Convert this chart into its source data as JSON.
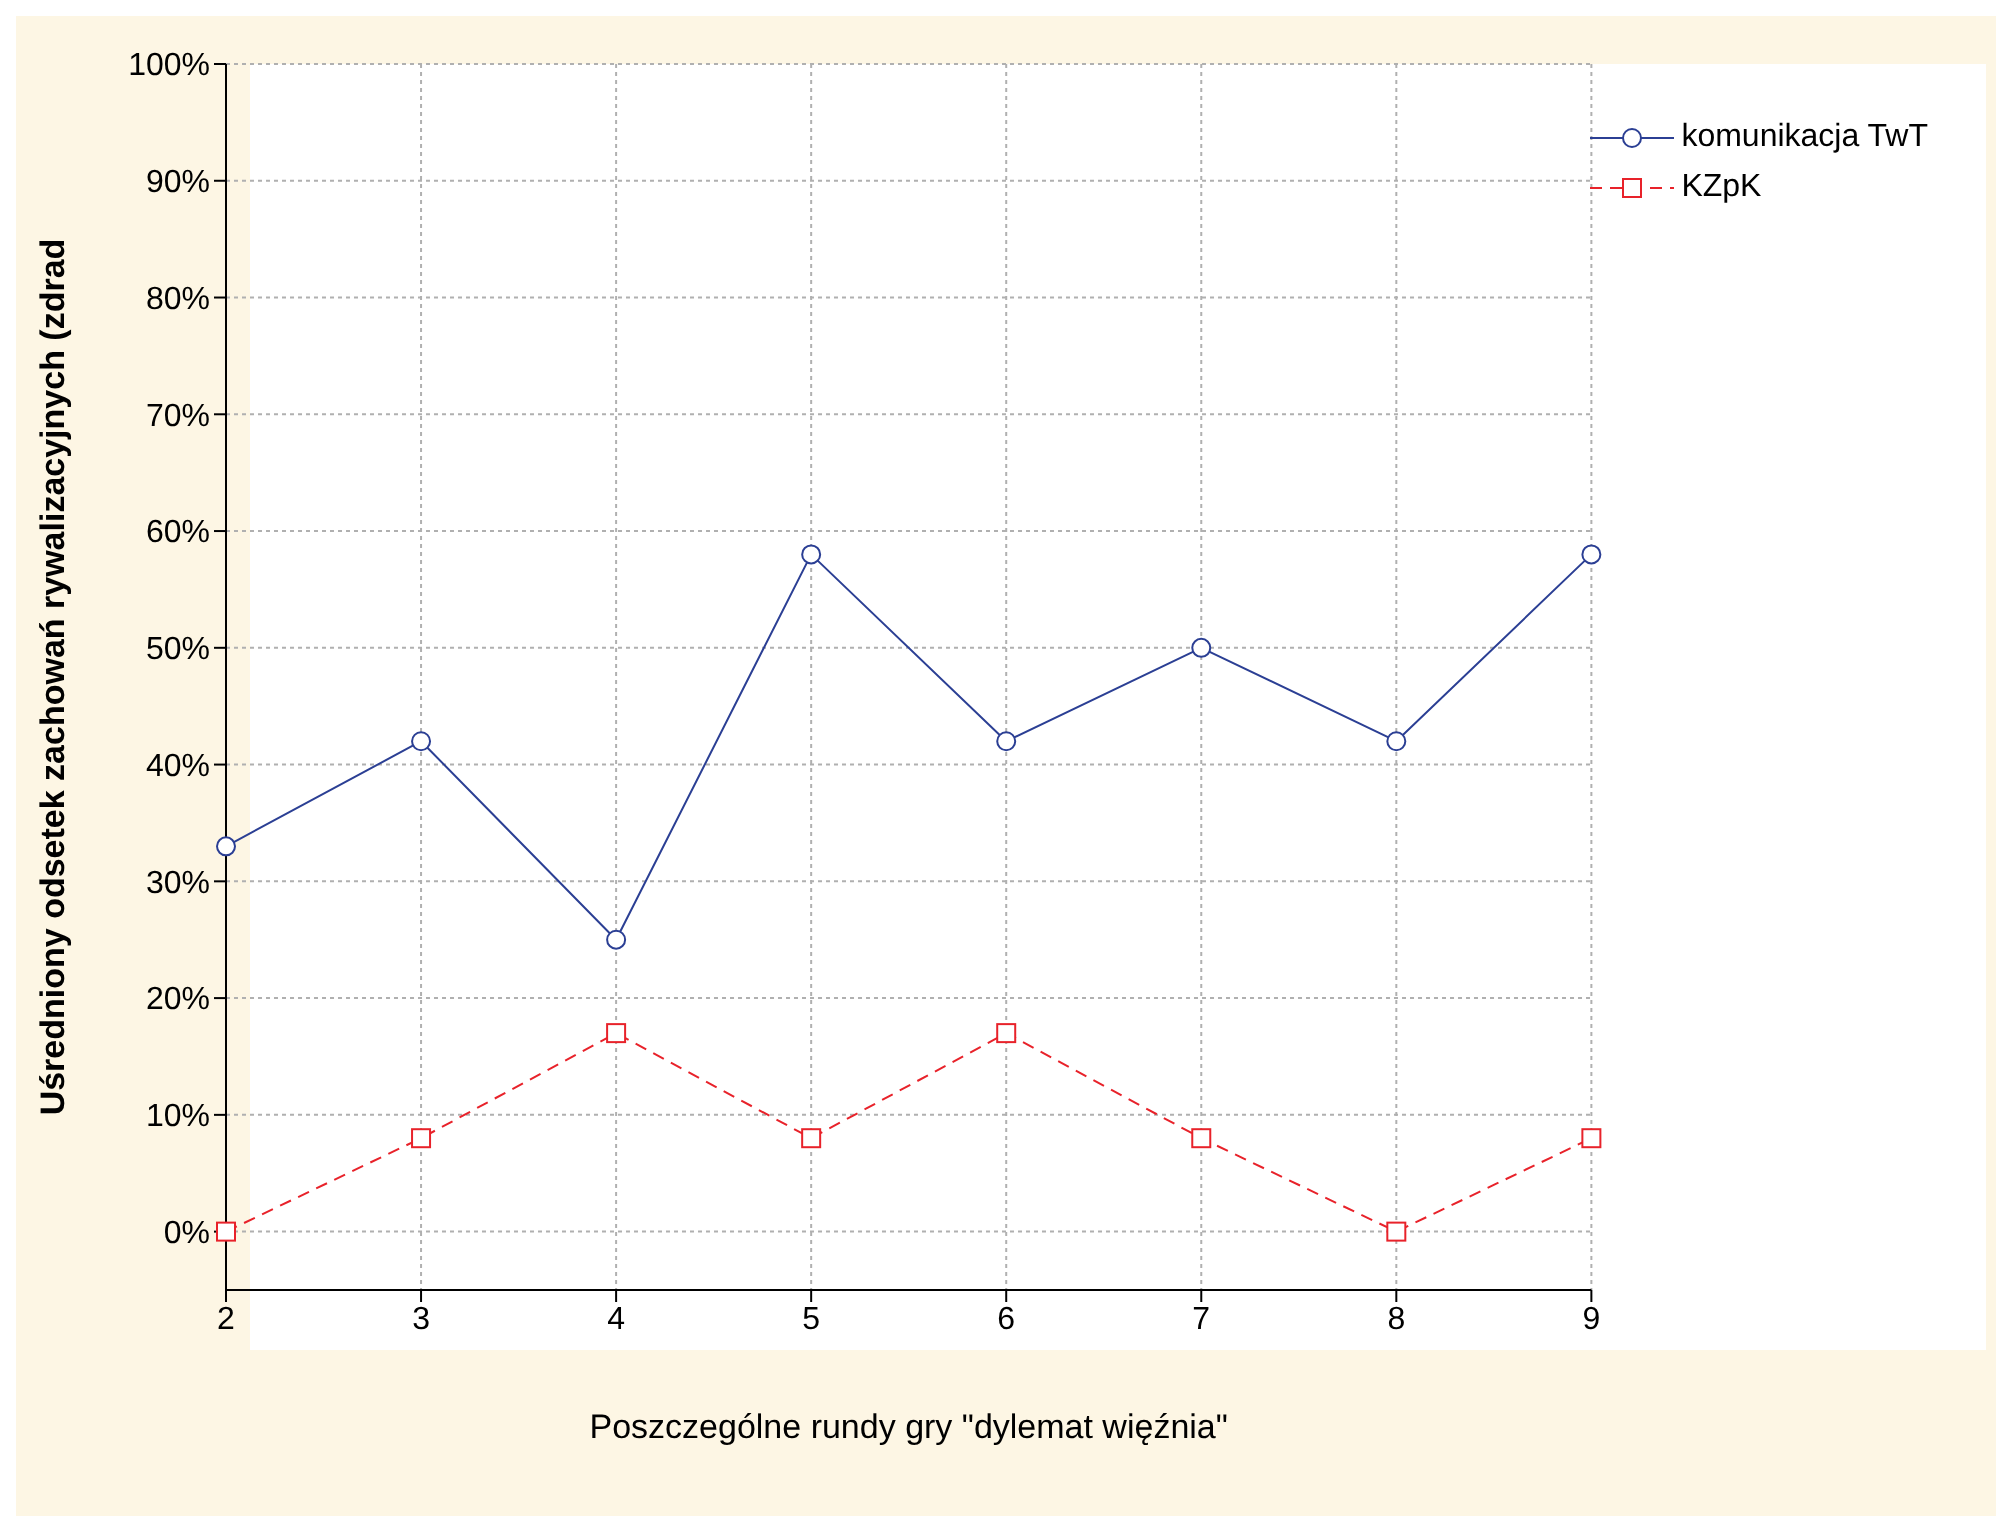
{
  "chart_data": {
    "type": "line",
    "xlabel": "Poszczególne rundy gry \"dylemat więźnia\"",
    "ylabel": "Uśredniony odsetek zachowań rywalizacyjnych (zdrad",
    "categories": [
      "2",
      "3",
      "4",
      "5",
      "6",
      "7",
      "8",
      "9"
    ],
    "series": [
      {
        "name": "komunikacja TwT",
        "color": "#2b3f94",
        "marker": "circle",
        "line_style": "solid",
        "values": [
          33,
          42,
          25,
          58,
          42,
          50,
          42,
          58
        ]
      },
      {
        "name": "KZpK",
        "color": "#e8222a",
        "marker": "square",
        "line_style": "dashed",
        "values": [
          0,
          8,
          17,
          8,
          17,
          8,
          0,
          8
        ]
      }
    ],
    "ylim": [
      -5,
      100
    ],
    "yticks": [
      {
        "value": 0,
        "label": "0%"
      },
      {
        "value": 10,
        "label": "10%"
      },
      {
        "value": 20,
        "label": "20%"
      },
      {
        "value": 30,
        "label": "30%"
      },
      {
        "value": 40,
        "label": "40%"
      },
      {
        "value": 50,
        "label": "50%"
      },
      {
        "value": 60,
        "label": "60%"
      },
      {
        "value": 70,
        "label": "70%"
      },
      {
        "value": 80,
        "label": "80%"
      },
      {
        "value": 90,
        "label": "90%"
      },
      {
        "value": 100,
        "label": "100%"
      }
    ],
    "grid": true,
    "legend": "top right"
  }
}
